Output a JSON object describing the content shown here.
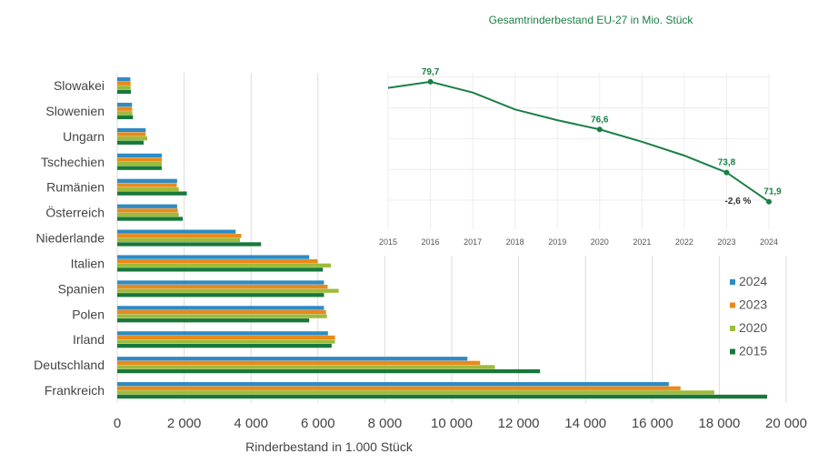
{
  "chart_data": [
    {
      "type": "bar",
      "orientation": "horizontal",
      "xlabel": "Rinderbestand in 1.000 Stück",
      "xlim": [
        0,
        20000
      ],
      "xticks": [
        "0",
        "2 000",
        "4 000",
        "6 000",
        "8 000",
        "10 000",
        "12 000",
        "14 000",
        "16 000",
        "18 000",
        "20 000"
      ],
      "grid": true,
      "legend_position": "right",
      "categories": [
        "Slowakei",
        "Slowenien",
        "Ungarn",
        "Tschechien",
        "Rumänien",
        "Österreich",
        "Niederlande",
        "Italien",
        "Spanien",
        "Polen",
        "Irland",
        "Deutschland",
        "Frankreich"
      ],
      "series": [
        {
          "name": "2024",
          "color": "#2e8bc4",
          "values": [
            390,
            440,
            850,
            1330,
            1790,
            1790,
            3540,
            5740,
            6180,
            6180,
            6300,
            10470,
            16490
          ]
        },
        {
          "name": "2023",
          "color": "#e88a1a",
          "values": [
            400,
            445,
            850,
            1330,
            1780,
            1810,
            3710,
            5990,
            6290,
            6240,
            6510,
            10850,
            16840
          ]
        },
        {
          "name": "2020",
          "color": "#9dbb3c",
          "values": [
            400,
            450,
            900,
            1330,
            1840,
            1840,
            3670,
            6390,
            6620,
            6270,
            6510,
            11290,
            17850
          ]
        },
        {
          "name": "2015",
          "color": "#17783a",
          "values": [
            410,
            470,
            790,
            1330,
            2080,
            1960,
            4300,
            6150,
            6180,
            5740,
            6410,
            12640,
            19430
          ]
        }
      ]
    },
    {
      "type": "line",
      "title": "Gesamtrinderbestand EU-27 in Mio. Stück",
      "x": [
        "2015",
        "2016",
        "2017",
        "2018",
        "2019",
        "2020",
        "2021",
        "2022",
        "2023",
        "2024"
      ],
      "y": [
        79.3,
        79.7,
        79.0,
        77.9,
        77.2,
        76.6,
        75.8,
        74.9,
        73.8,
        71.9
      ],
      "labels": {
        "1": "79,7",
        "5": "76,6",
        "8": "73,8",
        "9": "71,9"
      },
      "annotation": "-2,6 %",
      "ylim": [
        70,
        81
      ],
      "color": "#1a7f45",
      "grid": true
    }
  ]
}
